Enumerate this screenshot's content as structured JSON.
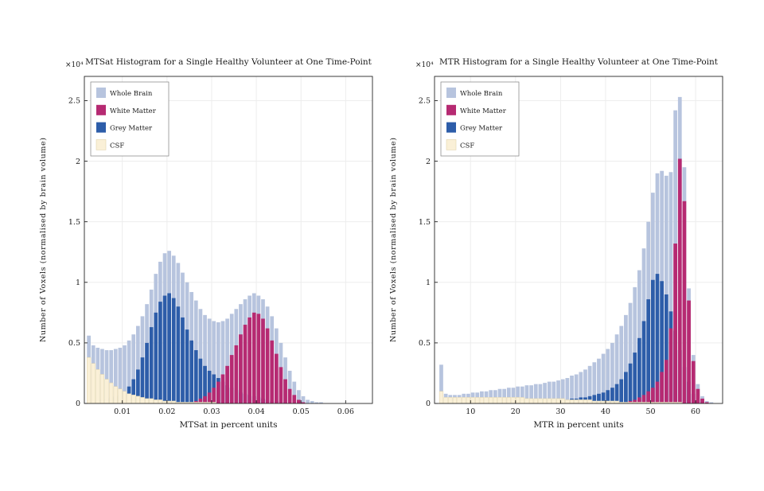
{
  "page": {
    "background": "#ffffff"
  },
  "chart_data": [
    {
      "type": "bar",
      "subtype": "overlaid-histogram",
      "title": "MTSat Histogram for a Single Healthy Volunteer at One Time-Point",
      "xlabel": "MTSat in percent units",
      "ylabel": "Number of Voxels (normalised by brain volume)",
      "y_multiplier": "×10⁴",
      "xlim": [
        0.0015,
        0.066
      ],
      "ylim": [
        0,
        2.7
      ],
      "xticks": [
        0.01,
        0.02,
        0.03,
        0.04,
        0.05,
        0.06
      ],
      "xtick_labels": [
        "0.01",
        "0.02",
        "0.03",
        "0.04",
        "0.05",
        "0.06"
      ],
      "yticks": [
        0,
        0.5,
        1,
        1.5,
        2,
        2.5
      ],
      "ytick_labels": [
        "0",
        "0.5",
        "1",
        "1.5",
        "2",
        "2.5"
      ],
      "bin_start": 0.002,
      "bin_width": 0.001,
      "legend": [
        "Whole Brain",
        "White Matter",
        "Grey Matter",
        "CSF"
      ],
      "draw_order": [
        "Whole Brain",
        "Grey Matter",
        "White Matter",
        "CSF"
      ],
      "series": [
        {
          "name": "Whole Brain",
          "color": "#b7c4de",
          "values": [
            0.56,
            0.48,
            0.46,
            0.45,
            0.44,
            0.44,
            0.45,
            0.46,
            0.48,
            0.52,
            0.57,
            0.64,
            0.72,
            0.82,
            0.94,
            1.07,
            1.17,
            1.24,
            1.26,
            1.22,
            1.16,
            1.08,
            1.0,
            0.92,
            0.85,
            0.78,
            0.73,
            0.7,
            0.68,
            0.67,
            0.68,
            0.7,
            0.74,
            0.78,
            0.82,
            0.86,
            0.89,
            0.91,
            0.89,
            0.86,
            0.8,
            0.72,
            0.62,
            0.5,
            0.38,
            0.27,
            0.18,
            0.11,
            0.06,
            0.03,
            0.02,
            0.01,
            0.01
          ]
        },
        {
          "name": "White Matter",
          "color": "#b62a72",
          "values": [
            0,
            0,
            0,
            0,
            0,
            0,
            0,
            0,
            0,
            0,
            0,
            0,
            0,
            0,
            0,
            0,
            0,
            0,
            0,
            0,
            0,
            0,
            0,
            0,
            0.02,
            0.04,
            0.06,
            0.09,
            0.13,
            0.18,
            0.24,
            0.31,
            0.4,
            0.48,
            0.57,
            0.65,
            0.71,
            0.75,
            0.74,
            0.7,
            0.62,
            0.52,
            0.41,
            0.3,
            0.2,
            0.12,
            0.07,
            0.03,
            0.01,
            0,
            0,
            0,
            0
          ]
        },
        {
          "name": "Grey Matter",
          "color": "#2d5da9",
          "values": [
            0.02,
            0.02,
            0.03,
            0.03,
            0.04,
            0.05,
            0.06,
            0.07,
            0.1,
            0.14,
            0.2,
            0.28,
            0.38,
            0.5,
            0.63,
            0.75,
            0.84,
            0.89,
            0.91,
            0.87,
            0.8,
            0.71,
            0.61,
            0.52,
            0.44,
            0.37,
            0.31,
            0.27,
            0.24,
            0.21,
            0.18,
            0.15,
            0.13,
            0.11,
            0.09,
            0.08,
            0.07,
            0.06,
            0.05,
            0.04,
            0.03,
            0.02,
            0.02,
            0.01,
            0.01,
            0,
            0,
            0,
            0,
            0,
            0,
            0,
            0
          ]
        },
        {
          "name": "CSF",
          "color": "#faf0d7",
          "edge": "#e3d5ae",
          "values": [
            0.38,
            0.33,
            0.28,
            0.24,
            0.2,
            0.17,
            0.14,
            0.12,
            0.1,
            0.08,
            0.07,
            0.06,
            0.05,
            0.04,
            0.04,
            0.03,
            0.03,
            0.02,
            0.02,
            0.02,
            0.01,
            0.01,
            0.01,
            0.01,
            0.01,
            0.01,
            0.01,
            0.01,
            0.01,
            0,
            0,
            0,
            0,
            0,
            0,
            0,
            0,
            0,
            0,
            0,
            0,
            0,
            0,
            0,
            0,
            0,
            0,
            0,
            0,
            0,
            0,
            0,
            0
          ]
        }
      ]
    },
    {
      "type": "bar",
      "subtype": "overlaid-histogram",
      "title": "MTR Histogram for a Single Healthy Volunteer at One Time-Point",
      "xlabel": "MTR in percent units",
      "ylabel": "Number of Voxels (normalised by brain volume)",
      "y_multiplier": "×10⁴",
      "xlim": [
        2,
        66
      ],
      "ylim": [
        0,
        2.7
      ],
      "xticks": [
        10,
        20,
        30,
        40,
        50,
        60
      ],
      "xtick_labels": [
        "10",
        "20",
        "30",
        "40",
        "50",
        "60"
      ],
      "yticks": [
        0,
        0.5,
        1,
        1.5,
        2,
        2.5
      ],
      "ytick_labels": [
        "0",
        "0.5",
        "1",
        "1.5",
        "2",
        "2.5"
      ],
      "bin_start": 3,
      "bin_width": 1,
      "legend": [
        "Whole Brain",
        "White Matter",
        "Grey Matter",
        "CSF"
      ],
      "draw_order": [
        "Whole Brain",
        "Grey Matter",
        "White Matter",
        "CSF"
      ],
      "series": [
        {
          "name": "Whole Brain",
          "color": "#b7c4de",
          "values": [
            0.32,
            0.08,
            0.07,
            0.07,
            0.07,
            0.08,
            0.08,
            0.09,
            0.09,
            0.1,
            0.1,
            0.11,
            0.11,
            0.12,
            0.12,
            0.13,
            0.13,
            0.14,
            0.14,
            0.15,
            0.15,
            0.16,
            0.16,
            0.17,
            0.18,
            0.18,
            0.19,
            0.2,
            0.21,
            0.23,
            0.24,
            0.26,
            0.28,
            0.31,
            0.34,
            0.37,
            0.41,
            0.45,
            0.5,
            0.57,
            0.64,
            0.73,
            0.83,
            0.96,
            1.1,
            1.28,
            1.5,
            1.74,
            1.9,
            1.92,
            1.88,
            1.91,
            2.42,
            2.53,
            1.95,
            0.95,
            0.4,
            0.16,
            0.06,
            0.02,
            0.01
          ]
        },
        {
          "name": "White Matter",
          "color": "#b62a72",
          "values": [
            0,
            0,
            0,
            0,
            0,
            0,
            0,
            0,
            0,
            0,
            0,
            0,
            0,
            0,
            0,
            0,
            0,
            0,
            0,
            0,
            0,
            0,
            0,
            0,
            0,
            0,
            0,
            0,
            0,
            0,
            0,
            0,
            0,
            0,
            0,
            0,
            0,
            0,
            0,
            0,
            0,
            0,
            0.02,
            0.03,
            0.05,
            0.07,
            0.1,
            0.13,
            0.18,
            0.26,
            0.36,
            0.62,
            1.32,
            2.02,
            1.67,
            0.85,
            0.35,
            0.12,
            0.04,
            0.01,
            0
          ]
        },
        {
          "name": "Grey Matter",
          "color": "#2d5da9",
          "values": [
            0.02,
            0.01,
            0.01,
            0.01,
            0.01,
            0.01,
            0.01,
            0.01,
            0.01,
            0.01,
            0.01,
            0.01,
            0.01,
            0.01,
            0.01,
            0.02,
            0.02,
            0.02,
            0.02,
            0.02,
            0.02,
            0.02,
            0.02,
            0.02,
            0.03,
            0.03,
            0.03,
            0.03,
            0.03,
            0.04,
            0.04,
            0.05,
            0.05,
            0.06,
            0.07,
            0.08,
            0.09,
            0.11,
            0.13,
            0.16,
            0.2,
            0.26,
            0.33,
            0.42,
            0.54,
            0.68,
            0.86,
            1.02,
            1.07,
            1.01,
            0.9,
            0.76,
            0.6,
            0.44,
            0.3,
            0.18,
            0.08,
            0.03,
            0.01,
            0,
            0
          ]
        },
        {
          "name": "CSF",
          "color": "#faf0d7",
          "edge": "#e3d5ae",
          "values": [
            0.1,
            0.05,
            0.05,
            0.05,
            0.05,
            0.05,
            0.05,
            0.05,
            0.05,
            0.05,
            0.05,
            0.05,
            0.05,
            0.05,
            0.05,
            0.05,
            0.05,
            0.05,
            0.05,
            0.04,
            0.04,
            0.04,
            0.04,
            0.04,
            0.04,
            0.04,
            0.04,
            0.04,
            0.03,
            0.03,
            0.03,
            0.03,
            0.03,
            0.03,
            0.02,
            0.02,
            0.02,
            0.02,
            0.02,
            0.02,
            0.01,
            0.01,
            0.01,
            0.01,
            0.01,
            0.01,
            0.01,
            0.01,
            0.01,
            0.01,
            0.01,
            0.01,
            0.01,
            0.01,
            0,
            0,
            0,
            0,
            0,
            0,
            0
          ]
        }
      ]
    }
  ],
  "style": {
    "axis_color": "#262626",
    "grid_color": "#ededed",
    "legend_border": "#808080",
    "text_color": "#1a1a1a"
  }
}
